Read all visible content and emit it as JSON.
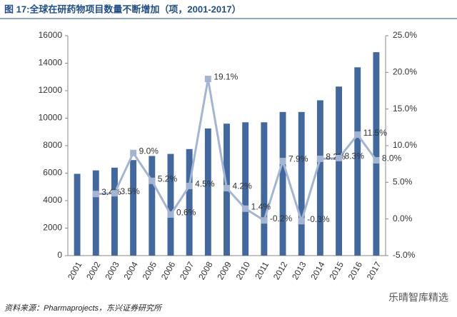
{
  "chart_data": {
    "type": "bar",
    "title": "图 17:全球在研药物项目数量不断增加（项，2001-2017）",
    "source": "资料来源：Pharmaprojects，东兴证券研究所",
    "watermark": "乐晴智库精选",
    "categories": [
      "2001",
      "2002",
      "2003",
      "2004",
      "2005",
      "2006",
      "2007",
      "2008",
      "2009",
      "2010",
      "2011",
      "2012",
      "2013",
      "2014",
      "2015",
      "2016",
      "2017"
    ],
    "series": [
      {
        "type": "bar",
        "color": "#41689f",
        "values": [
          5950,
          6200,
          6400,
          6950,
          7250,
          7400,
          7750,
          9250,
          9600,
          9700,
          9700,
          10450,
          10450,
          11300,
          12300,
          13700,
          14800
        ]
      },
      {
        "type": "line",
        "axis": "y2",
        "color": "#a3b5d3",
        "values": [
          null,
          3.4,
          3.5,
          9.0,
          5.2,
          0.6,
          4.5,
          19.1,
          4.2,
          1.4,
          -0.2,
          7.9,
          -0.3,
          8.2,
          8.3,
          11.5,
          8.0
        ],
        "value_labels": [
          null,
          "3.4%",
          "3.5%",
          "9.0%",
          "5.2%",
          "0.6%",
          "4.5%",
          "19.1%",
          "4.2%",
          "1.4%",
          "-0.2%",
          "7.9%",
          "-0.3%",
          "8.2%",
          "8.3%",
          "11.5%",
          "8.0%"
        ]
      }
    ],
    "ylim": [
      0,
      16000
    ],
    "yticks": [
      0,
      2000,
      4000,
      6000,
      8000,
      10000,
      12000,
      14000,
      16000
    ],
    "y2lim": [
      -5,
      25
    ],
    "y2ticks": [
      {
        "value": -5,
        "label": "-5.0%"
      },
      {
        "value": 0,
        "label": "0.0%"
      },
      {
        "value": 5,
        "label": "5.0%"
      },
      {
        "value": 10,
        "label": "10.0%"
      },
      {
        "value": 15,
        "label": "15.0%"
      },
      {
        "value": 20,
        "label": "20.0%"
      },
      {
        "value": 25,
        "label": "25.0%"
      }
    ]
  }
}
